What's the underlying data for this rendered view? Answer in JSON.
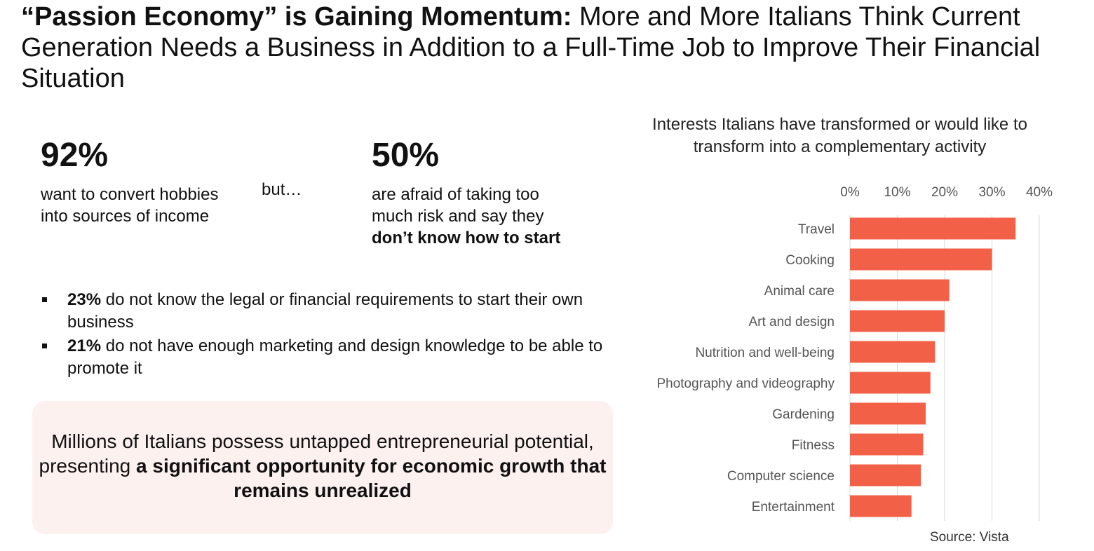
{
  "title": {
    "bold": "“Passion Economy” is Gaining Momentum:",
    "rest": " More and More Italians Think Current Generation Needs a Business in Addition to a Full-Time Job to Improve Their Financial Situation"
  },
  "stat1": {
    "value": "92%",
    "text": "want to convert hobbies into sources of income"
  },
  "connector": "but…",
  "stat2": {
    "value": "50%",
    "text": "are afraid of taking too much risk and say they ",
    "bold": "don’t know how to start"
  },
  "bullets": [
    {
      "bold": "23%",
      "text": " do not know the legal or financial requirements to start their own business"
    },
    {
      "bold": "21%",
      "text": " do not have enough marketing and design knowledge to be able to promote it"
    }
  ],
  "callout": {
    "text": "Millions of Italians possess untapped entrepreneurial potential, presenting ",
    "bold": "a significant opportunity for economic growth that remains unrealized"
  },
  "source": "Source: Vista",
  "colors": {
    "bar": "#f26147",
    "callout_bg": "#fdf1ef",
    "grid": "#d9d9d9"
  },
  "chart_data": {
    "type": "bar",
    "orientation": "horizontal",
    "title": "Interests Italians have transformed or would like to transform into a complementary activity",
    "categories": [
      "Travel",
      "Cooking",
      "Animal care",
      "Art and design",
      "Nutrition and well-being",
      "Photography and videography",
      "Gardening",
      "Fitness",
      "Computer science",
      "Entertainment"
    ],
    "values": [
      35,
      30,
      21,
      20,
      18,
      17,
      16,
      15.5,
      15,
      13
    ],
    "xlim": [
      0,
      40
    ],
    "ticks": [
      0,
      10,
      20,
      30,
      40
    ],
    "tick_labels": [
      "0%",
      "10%",
      "20%",
      "30%",
      "40%"
    ],
    "axis_position": "top",
    "grid": true
  }
}
